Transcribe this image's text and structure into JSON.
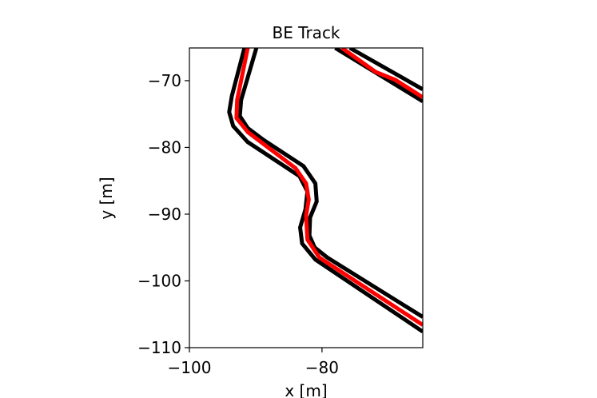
{
  "chart_data": {
    "type": "line",
    "title": "BE Track",
    "x_label": "x [m]",
    "y_label": "y [m]",
    "xlim": [
      -100,
      -64.8
    ],
    "ylim": [
      -110,
      -65.1
    ],
    "xticks": [
      {
        "value": -100,
        "label": "−100"
      },
      {
        "value": -80,
        "label": "−80"
      }
    ],
    "yticks": [
      {
        "value": -110,
        "label": "−110"
      },
      {
        "value": -100,
        "label": "−100"
      },
      {
        "value": -90,
        "label": "−90"
      },
      {
        "value": -80,
        "label": "−80"
      },
      {
        "value": -70,
        "label": "−70"
      }
    ],
    "grid": false,
    "series": [
      {
        "color": "#000000",
        "x": [
          -91.7,
          -93.6,
          -94.0,
          -93.4,
          -91.2,
          -83.4,
          -82.2,
          -82.5,
          -83.3,
          -83.0,
          -81.0,
          -64.8,
          null,
          -78.0,
          -64.8
        ],
        "values": [
          -65.1,
          -72.3,
          -74.7,
          -76.8,
          -79.2,
          -84.3,
          -86.6,
          -89.3,
          -92.0,
          -94.4,
          -96.8,
          -107.6,
          null,
          -65.1,
          -73.1
        ]
      },
      {
        "color": "#000000",
        "x": [
          -89.9,
          -92.2,
          -92.4,
          -91.2,
          -88.8,
          -82.8,
          -81.0,
          -80.8,
          -81.8,
          -81.9,
          -81.1,
          -79.2,
          -64.8,
          null,
          -75.8,
          -64.8
        ],
        "values": [
          -65.1,
          -72.9,
          -75.3,
          -77.1,
          -78.9,
          -82.8,
          -85.4,
          -88.1,
          -90.5,
          -93.2,
          -95.0,
          -96.5,
          -105.4,
          null,
          -65.1,
          -71.3
        ]
      },
      {
        "color": "#ff0000",
        "x": [
          -91.2,
          -92.8,
          -92.9,
          -91.2,
          -84.0,
          -82.4,
          -82.0,
          -82.4,
          -82.2,
          -80.4,
          -64.8,
          null,
          -77.0,
          -71.9,
          -68.9,
          -64.8
        ],
        "values": [
          -65.1,
          -72.9,
          -75.6,
          -77.7,
          -83.1,
          -85.4,
          -87.8,
          -90.2,
          -93.8,
          -96.5,
          -106.6,
          null,
          -65.1,
          -68.7,
          -69.9,
          -72.5
        ]
      }
    ]
  }
}
